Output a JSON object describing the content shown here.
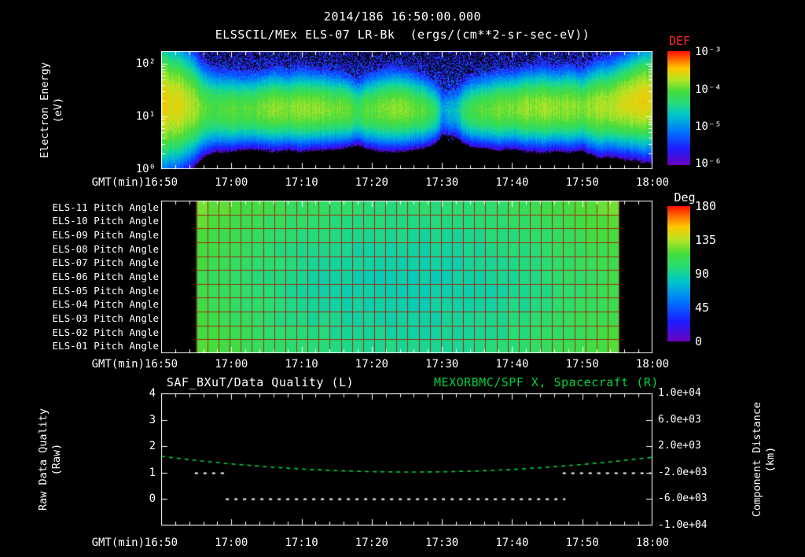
{
  "header": {
    "title": "2014/186 16:50:00.000",
    "subtitle": "ELSSCIL/MEx ELS-07 LR-Bk  (ergs/(cm**2-sr-sec-eV))"
  },
  "time_axis": {
    "label": "GMT(min)",
    "tick_labels": [
      "16:50",
      "17:00",
      "17:10",
      "17:20",
      "17:30",
      "17:40",
      "17:50",
      "18:00"
    ],
    "tick_minutes": [
      0,
      10,
      20,
      30,
      40,
      50,
      60,
      70
    ],
    "minor_step_min": 2,
    "range_minutes": [
      0,
      70
    ]
  },
  "colors": {
    "background": "#000000",
    "axis": "#ffffff",
    "accent_red": "#ff2a2a",
    "accent_green": "#00d23c",
    "grid_pitch": "#9a3010"
  },
  "chart_data": [
    {
      "type": "heatmap",
      "name": "electron-energy-spectrogram",
      "instrument": "ELSSCIL/MEx ELS-07 LR-Bk",
      "units": "ergs/(cm**2-sr-sec-eV)",
      "ylabel_lines": [
        "Electron Energy",
        "(eV)"
      ],
      "y_tick_labels": [
        "10²",
        "10¹",
        "10⁰"
      ],
      "y_log_range": [
        0,
        2.24
      ],
      "colorbar": {
        "label": "DEF",
        "tick_labels": [
          "10⁻³",
          "10⁻⁴",
          "10⁻⁵",
          "10⁻⁶"
        ],
        "log10_range": [
          -6,
          -3
        ]
      },
      "sample_step_min": 2,
      "band_peak_1e4": [
        3.0,
        2.6,
        1.8,
        0.9,
        0.7,
        0.9,
        0.8,
        1.0,
        1.25,
        1.15,
        1.3,
        1.25,
        1.05,
        0.95,
        0.55,
        0.9,
        1.1,
        1.2,
        1.0,
        0.7,
        0.08,
        0.15,
        0.6,
        0.85,
        0.95,
        1.05,
        1.25,
        1.35,
        1.25,
        1.3,
        1.15,
        1.45,
        1.6,
        2.2,
        2.6,
        2.9
      ],
      "band_sigma": [
        0.45,
        0.42,
        0.38,
        0.3,
        0.27,
        0.26,
        0.25,
        0.25,
        0.26,
        0.25,
        0.26,
        0.25,
        0.25,
        0.24,
        0.22,
        0.25,
        0.26,
        0.26,
        0.25,
        0.23,
        0.2,
        0.2,
        0.23,
        0.24,
        0.25,
        0.25,
        0.26,
        0.27,
        0.26,
        0.27,
        0.26,
        0.3,
        0.3,
        0.32,
        0.34,
        0.36
      ],
      "band_center_logE": [
        1.25,
        1.22,
        1.2,
        1.15,
        1.13,
        1.12,
        1.12,
        1.13,
        1.15,
        1.14,
        1.15,
        1.15,
        1.14,
        1.13,
        1.1,
        1.12,
        1.14,
        1.15,
        1.13,
        1.1,
        1.08,
        1.08,
        1.1,
        1.12,
        1.13,
        1.15,
        1.16,
        1.17,
        1.16,
        1.17,
        1.16,
        1.18,
        1.2,
        1.25,
        1.3,
        1.33
      ]
    },
    {
      "type": "heatmap",
      "name": "pitch-angle-panels",
      "row_labels": [
        "ELS-11 Pitch Angle",
        "ELS-10 Pitch Angle",
        "ELS-09 Pitch Angle",
        "ELS-08 Pitch Angle",
        "ELS-07 Pitch Angle",
        "ELS-06 Pitch Angle",
        "ELS-05 Pitch Angle",
        "ELS-04 Pitch Angle",
        "ELS-03 Pitch Angle",
        "ELS-02 Pitch Angle",
        "ELS-01 Pitch Angle"
      ],
      "colorbar": {
        "label": "Deg",
        "tick_labels": [
          "180",
          "135",
          "90",
          "45",
          "0"
        ],
        "range": [
          0,
          180
        ]
      },
      "data_start_min": 5,
      "data_end_min": 65.2,
      "col_base_deg": [
        113,
        110,
        108,
        106,
        103,
        101,
        99,
        97,
        96,
        94,
        93,
        92,
        91,
        90,
        89,
        89,
        88,
        88,
        88,
        88,
        88,
        88,
        89,
        89,
        90,
        91,
        92,
        93,
        95,
        96,
        98,
        100,
        102,
        104,
        106,
        108,
        110,
        112
      ],
      "row_offset_deg": [
        12,
        8,
        5,
        2,
        0,
        -2,
        -2,
        -1,
        1,
        3,
        6
      ]
    },
    {
      "type": "line",
      "name": "quality-and-distance",
      "left_title": "SAF_BXuT/Data Quality (L)",
      "right_title": "MEXORBMC/SPF X, Spacecraft (R)",
      "left_axis": {
        "label_lines": [
          "Raw Data Quality",
          "(Raw)"
        ],
        "tick_labels": [
          "4",
          "3",
          "2",
          "1",
          "0"
        ],
        "values": [
          4,
          3,
          2,
          1,
          0
        ],
        "range": [
          -1,
          4
        ]
      },
      "right_axis": {
        "label_lines": [
          "Component Distance",
          "(km)"
        ],
        "tick_labels": [
          "1.0e+04",
          "6.0e+03",
          "2.0e+03",
          "-2.0e+03",
          "-6.0e+03",
          "-1.0e+04"
        ],
        "values": [
          10000,
          6000,
          2000,
          -2000,
          -6000,
          -10000
        ],
        "range": [
          -10000,
          10000
        ]
      },
      "series": [
        {
          "name": "MEXORBMC/SPF X Spacecraft",
          "axis": "right",
          "color": "#00d23c",
          "style": "dashed",
          "x_minutes": [
            0,
            5,
            10,
            15,
            20,
            25,
            30,
            35,
            40,
            45,
            50,
            55,
            60,
            65,
            70
          ],
          "values_km": [
            480,
            -150,
            -680,
            -1100,
            -1450,
            -1700,
            -1850,
            -1910,
            -1880,
            -1750,
            -1520,
            -1180,
            -760,
            -250,
            330
          ]
        },
        {
          "name": "SAF_BXuT Data Quality",
          "axis": "left",
          "color": "#ffffff",
          "style": "dashed",
          "segments": [
            {
              "value": 1,
              "from_min": 4.8,
              "to_min": 9.7
            },
            {
              "value": 0,
              "from_min": 9.2,
              "to_min": 57.6
            },
            {
              "value": 1,
              "from_min": 57.2,
              "to_min": 70
            }
          ]
        }
      ]
    }
  ]
}
